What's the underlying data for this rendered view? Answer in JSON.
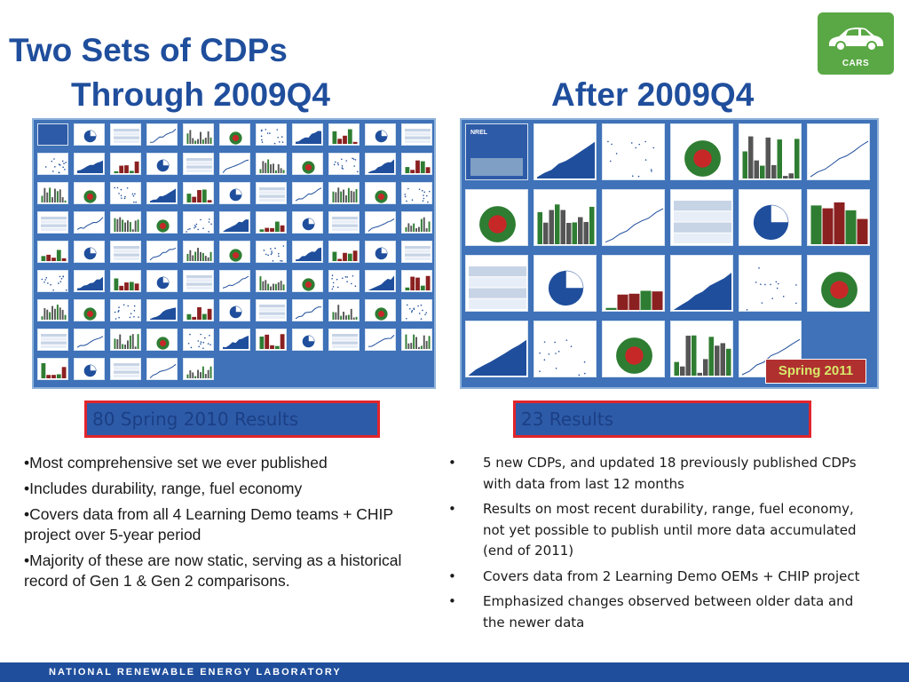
{
  "title": {
    "line1": "Two Sets of CDPs",
    "left_heading": "Through 2009Q4",
    "right_heading": "After 2009Q4"
  },
  "logo": {
    "icon": "car-icon",
    "label": "CARS",
    "color": "#5aa845"
  },
  "right_panel": {
    "badge": "Spring 2011",
    "cover_title": "NREL"
  },
  "left_results": "80 Spring 2010 Results",
  "right_results": "23 Results",
  "left_bullets": [
    "•Most comprehensive set we ever published",
    "•Includes durability, range, fuel economy",
    "•Covers data from all 4 Learning Demo teams + CHIP project over 5-year period",
    "•Majority of these are now static, serving as a historical record of Gen 1 & Gen 2 comparisons."
  ],
  "right_bullets": [
    "5 new CDPs, and updated 18 previously published CDPs with data from last 12 months",
    "Results on most recent durability, range, fuel economy, not yet possible to publish until more data accumulated (end of 2011)",
    "Covers data from 2 Learning Demo OEMs + CHIP project",
    "Emphasized changes observed between older data and the newer data"
  ],
  "bullet_symbol": "•",
  "footer": "NATIONAL RENEWABLE ENERGY LABORATORY",
  "colors": {
    "title": "#1f4e9c",
    "panel": "#3f72b8",
    "result_border": "#e1252c",
    "result_fill": "#2e5ba8",
    "badge": "#b03030",
    "footer": "#1f4e9c"
  }
}
